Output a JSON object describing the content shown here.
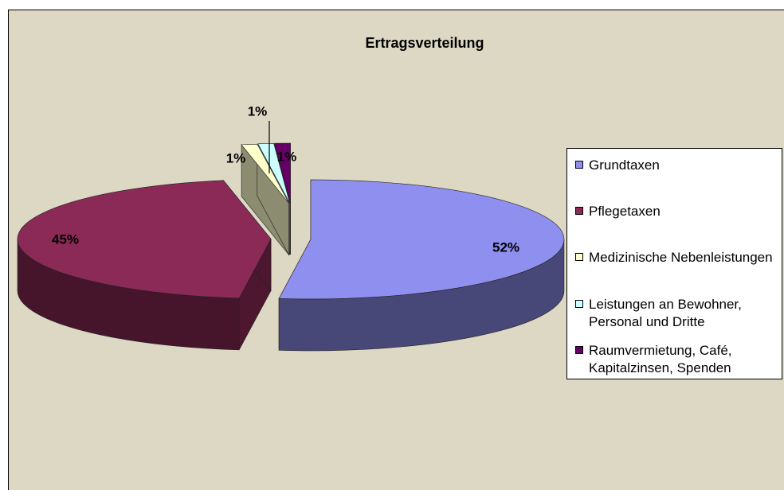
{
  "chart_data": {
    "type": "pie",
    "title": "Ertragsverteilung",
    "categories": [
      "Grundtaxen",
      "Pflegetaxen",
      "Medizinische Nebenleistungen",
      "Leistungen an Bewohner, Personal und Dritte",
      "Raumvermietung, Café, Kapitalzinsen, Spenden"
    ],
    "values": [
      52,
      45,
      1,
      1,
      1
    ],
    "value_labels": [
      "52%",
      "45%",
      "1%",
      "1%",
      "1%"
    ],
    "colors": [
      "#8f8fef",
      "#8b2a56",
      "#ffffcc",
      "#ccffff",
      "#660066"
    ],
    "legend": "right"
  }
}
